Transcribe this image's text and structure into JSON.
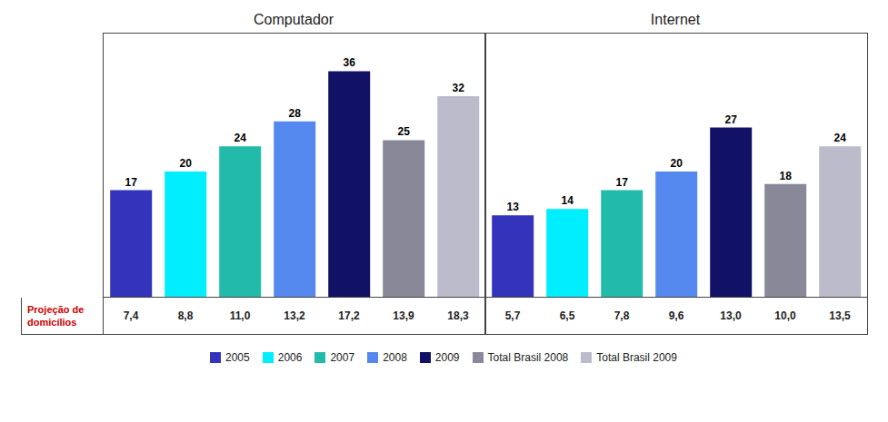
{
  "chart_data": [
    {
      "type": "bar",
      "title": "Computador",
      "categories": [
        "2005",
        "2006",
        "2007",
        "2008",
        "2009",
        "Total Brasil 2008",
        "Total Brasil 2009"
      ],
      "values": [
        17,
        20,
        24,
        28,
        36,
        25,
        32
      ],
      "colors": [
        "#3333bb",
        "#00eeff",
        "#22bbaa",
        "#5588ee",
        "#111166",
        "#888899",
        "#bbbbcc"
      ],
      "ylim": [
        0,
        42
      ],
      "data_labels": true,
      "tick_labels": false,
      "legend": "bottom",
      "projection": {
        "values": [
          7.4,
          8.8,
          11.0,
          13.2,
          17.2,
          13.9,
          18.3
        ],
        "value_labels": [
          "7,4",
          "8,8",
          "11,0",
          "13,2",
          "17,2",
          "13,9",
          "18,3"
        ]
      }
    },
    {
      "type": "bar",
      "title": "Internet",
      "categories": [
        "2005",
        "2006",
        "2007",
        "2008",
        "2009",
        "Total Brasil 2008",
        "Total Brasil 2009"
      ],
      "values": [
        13,
        14,
        17,
        20,
        27,
        18,
        24
      ],
      "colors": [
        "#3333bb",
        "#00eeff",
        "#22bbaa",
        "#5588ee",
        "#111166",
        "#888899",
        "#bbbbcc"
      ],
      "ylim": [
        0,
        42
      ],
      "data_labels": true,
      "tick_labels": false,
      "legend": "bottom",
      "projection": {
        "values": [
          5.7,
          6.5,
          7.8,
          9.6,
          13.0,
          10.0,
          13.5
        ],
        "value_labels": [
          "5,7",
          "6,5",
          "7,8",
          "9,6",
          "13,0",
          "10,0",
          "13,5"
        ]
      }
    }
  ],
  "row_label": {
    "lines": [
      "Projeção de",
      "domicílios"
    ],
    "color": "#cc0000"
  }
}
